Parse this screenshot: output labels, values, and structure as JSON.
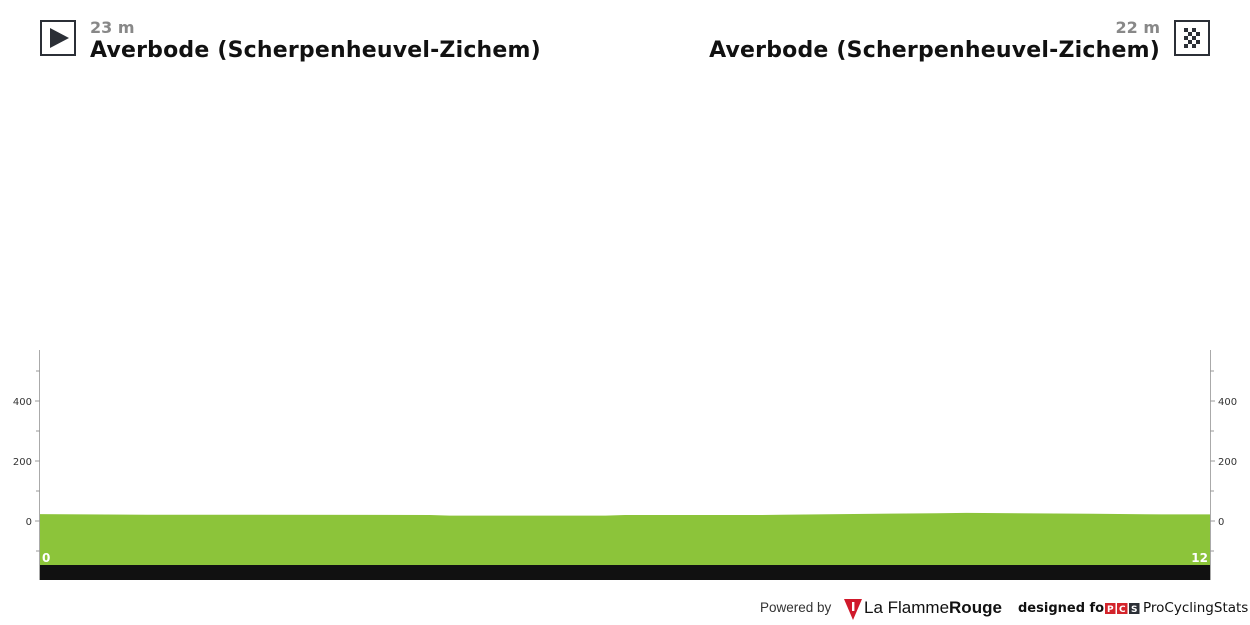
{
  "start": {
    "altitude": "23 m",
    "name": "Averbode (Scherpenheuvel-Zichem)",
    "icon": "play-icon"
  },
  "finish": {
    "altitude": "22 m",
    "name": "Averbode (Scherpenheuvel-Zichem)",
    "icon": "checkered-flag-icon"
  },
  "footer": {
    "powered_by": "Powered by",
    "brand_light": "La Flamme",
    "brand_bold": "Rouge",
    "designed_for": "designed for",
    "pcs_letters": [
      "P",
      "C",
      "S"
    ],
    "pcs_name": "ProCyclingStats"
  },
  "colors": {
    "profile_fill": "#8cc43a",
    "distance_bar": "#111111",
    "axis": "#aaaaaa",
    "pcs_red": "#d3242b",
    "lfr_red": "#d0192b"
  },
  "chart_data": {
    "type": "area",
    "title": "",
    "xlabel": "",
    "ylabel": "",
    "x": [
      0,
      1.1,
      2,
      4,
      4.2,
      5.8,
      6,
      7.4,
      7.6,
      9.2,
      9.5,
      10.8,
      11.5,
      12
    ],
    "y": [
      23,
      21,
      21,
      20,
      18,
      18,
      20,
      20,
      21,
      26,
      27,
      24,
      22,
      22
    ],
    "xlim": [
      0,
      12
    ],
    "ylim": [
      -150,
      560
    ],
    "y_ticks": [
      0,
      200,
      400
    ],
    "x_tick_labels": [
      "0",
      "12"
    ],
    "grid": false,
    "legend": "none"
  }
}
